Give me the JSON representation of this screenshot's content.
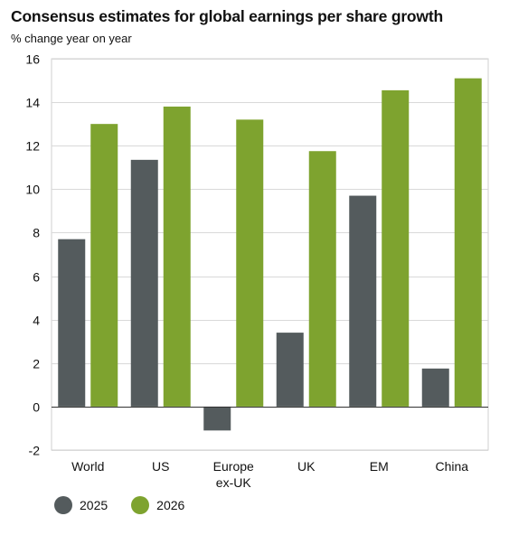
{
  "title": "Consensus estimates for global earnings per share growth",
  "subtitle": "% change year on year",
  "chart_data": {
    "type": "bar",
    "title": "Consensus estimates for global earnings per share growth",
    "ylabel": "% change year on year",
    "categories": [
      "World",
      "US",
      "Europe ex-UK",
      "UK",
      "EM",
      "China"
    ],
    "category_lines": [
      [
        "World"
      ],
      [
        "US"
      ],
      [
        "Europe",
        "ex-UK"
      ],
      [
        "UK"
      ],
      [
        "EM"
      ],
      [
        "China"
      ]
    ],
    "series": [
      {
        "name": "2025",
        "color": "#545b5d",
        "values": [
          7.7,
          11.35,
          -1.1,
          3.4,
          9.7,
          1.75
        ]
      },
      {
        "name": "2026",
        "color": "#7ea32f",
        "values": [
          13.0,
          13.8,
          13.2,
          11.75,
          14.55,
          15.1
        ]
      }
    ],
    "ylim": [
      -2,
      16
    ],
    "yticks": [
      -2,
      0,
      2,
      4,
      6,
      8,
      10,
      12,
      14,
      16
    ],
    "grid": true,
    "legend_position": "bottom-left"
  }
}
